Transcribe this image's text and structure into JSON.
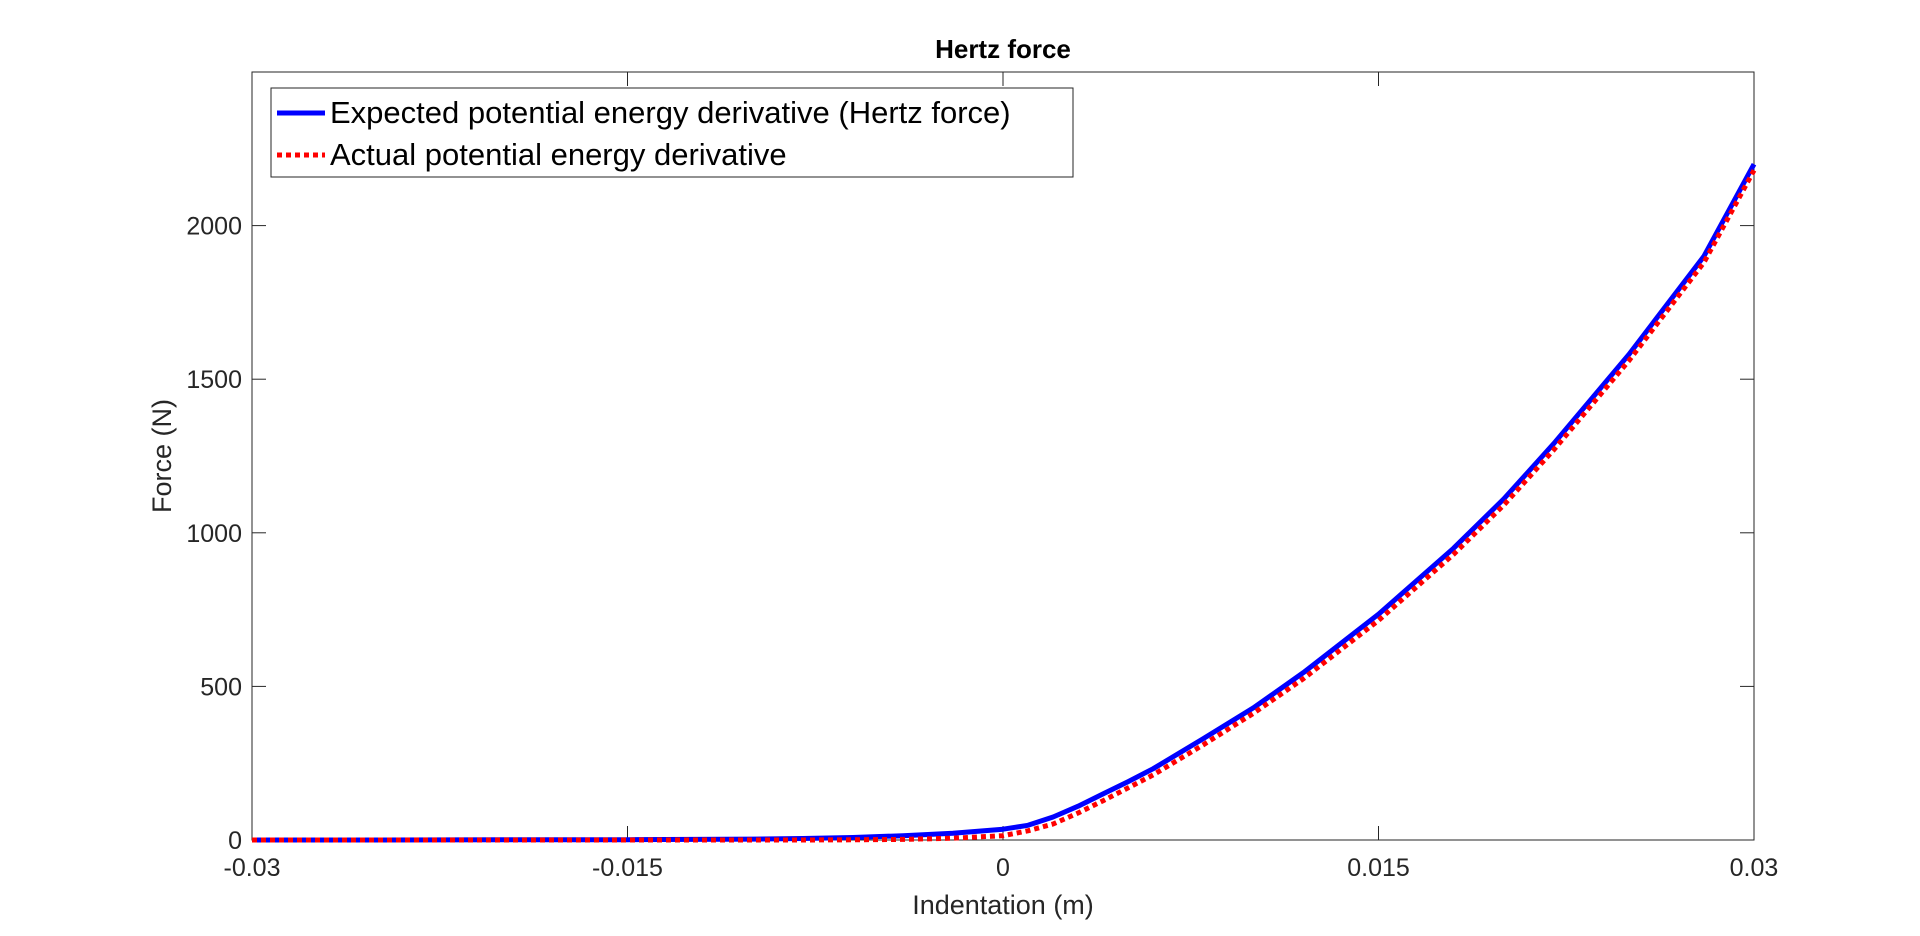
{
  "chart_data": {
    "type": "line",
    "title": "Hertz force",
    "xlabel": "Indentation (m)",
    "ylabel": "Force (N)",
    "xlim": [
      -0.03,
      0.03
    ],
    "ylim": [
      0,
      2500
    ],
    "xticks": [
      -0.03,
      -0.015,
      0,
      0.015,
      0.03
    ],
    "xtick_labels": [
      "-0.03",
      "-0.015",
      "0",
      "0.015",
      "0.03"
    ],
    "yticks": [
      0,
      500,
      1000,
      1500,
      2000
    ],
    "ytick_labels": [
      "0",
      "500",
      "1000",
      "1500",
      "2000"
    ],
    "grid": false,
    "legend_position": "top-left",
    "series": [
      {
        "name": "Expected potential energy derivative (Hertz force)",
        "color": "#0000ff",
        "style": "solid",
        "x": [
          -0.03,
          -0.025,
          -0.02,
          -0.015,
          -0.01,
          -0.008,
          -0.006,
          -0.004,
          -0.002,
          0,
          0.001,
          0.002,
          0.003,
          0.004,
          0.005,
          0.006,
          0.008,
          0.01,
          0.012,
          0.015,
          0.018,
          0.02,
          0.022,
          0.025,
          0.028,
          0.03
        ],
        "y": [
          0,
          0,
          0.5,
          1,
          3,
          5,
          8,
          14,
          22,
          35,
          48,
          75,
          110,
          150,
          190,
          232,
          330,
          430,
          545,
          735,
          950,
          1110,
          1290,
          1580,
          1900,
          2200
        ]
      },
      {
        "name": "Actual potential energy derivative",
        "color": "#ff0000",
        "style": "dotted",
        "x": [
          -0.03,
          -0.025,
          -0.02,
          -0.015,
          -0.01,
          -0.008,
          -0.006,
          -0.004,
          -0.002,
          0,
          0.001,
          0.002,
          0.003,
          0.004,
          0.005,
          0.006,
          0.008,
          0.01,
          0.012,
          0.015,
          0.018,
          0.02,
          0.022,
          0.025,
          0.028,
          0.03
        ],
        "y": [
          0,
          0,
          0,
          0,
          0,
          0,
          0.5,
          2,
          6,
          14,
          30,
          52,
          88,
          128,
          170,
          212,
          310,
          412,
          525,
          715,
          930,
          1090,
          1270,
          1560,
          1880,
          2180
        ]
      }
    ]
  }
}
